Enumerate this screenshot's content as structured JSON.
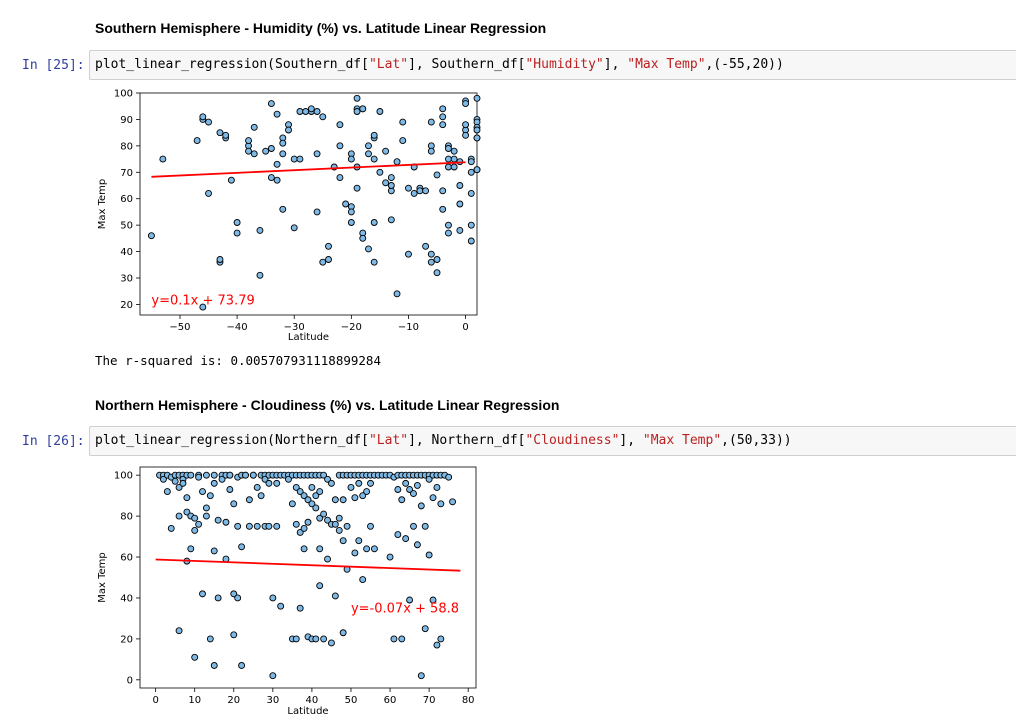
{
  "cells": [
    {
      "heading": "Southern Hemisphere - Humidity (%) vs. Latitude Linear Regression",
      "prompt": "In [25]:",
      "code_parts": [
        {
          "text": "plot_linear_regression(Southern_df[",
          "cls": ""
        },
        {
          "text": "\"Lat\"",
          "cls": "str"
        },
        {
          "text": "], Southern_df[",
          "cls": ""
        },
        {
          "text": "\"Humidity\"",
          "cls": "str"
        },
        {
          "text": "], ",
          "cls": ""
        },
        {
          "text": "\"Max Temp\"",
          "cls": "str"
        },
        {
          "text": ",(-55,20))",
          "cls": ""
        }
      ],
      "output_text": "The r-squared is: 0.005707931118899284"
    },
    {
      "heading": "Northern Hemisphere - Cloudiness (%) vs. Latitude Linear Regression",
      "prompt": "In [26]:",
      "code_parts": [
        {
          "text": "plot_linear_regression(Northern_df[",
          "cls": ""
        },
        {
          "text": "\"Lat\"",
          "cls": "str"
        },
        {
          "text": "], Northern_df[",
          "cls": ""
        },
        {
          "text": "\"Cloudiness\"",
          "cls": "str"
        },
        {
          "text": "], ",
          "cls": ""
        },
        {
          "text": "\"Max Temp\"",
          "cls": "str"
        },
        {
          "text": ",(50,33))",
          "cls": ""
        }
      ]
    }
  ],
  "chart_data": [
    {
      "type": "scatter",
      "xlabel": "Latitude",
      "ylabel": "Max Temp",
      "xlim": [
        -57,
        2
      ],
      "ylim": [
        16,
        100
      ],
      "xticks": [
        -50,
        -40,
        -30,
        -20,
        -10,
        0
      ],
      "yticks": [
        20,
        30,
        40,
        50,
        60,
        70,
        80,
        90,
        100
      ],
      "point_color": "#7fb9e6",
      "edge_color": "#000000",
      "line_color": "#ff0000",
      "regression": {
        "slope": 0.1,
        "intercept": 73.79,
        "x_range": [
          -55,
          0
        ]
      },
      "equation_label": {
        "text": "y=0.1x + 73.79",
        "x": -55,
        "y": 20
      },
      "points": [
        [
          -55,
          46
        ],
        [
          -53,
          75
        ],
        [
          -47,
          82
        ],
        [
          -46,
          90
        ],
        [
          -46,
          91
        ],
        [
          -45,
          89
        ],
        [
          -45,
          62
        ],
        [
          -46,
          19
        ],
        [
          -43,
          36
        ],
        [
          -43,
          37
        ],
        [
          -43,
          85
        ],
        [
          -42,
          83
        ],
        [
          -42,
          84
        ],
        [
          -41,
          67
        ],
        [
          -40,
          51
        ],
        [
          -40,
          47
        ],
        [
          -38,
          80
        ],
        [
          -38,
          78
        ],
        [
          -38,
          82
        ],
        [
          -37,
          77
        ],
        [
          -37,
          87
        ],
        [
          -36,
          48
        ],
        [
          -36,
          31
        ],
        [
          -35,
          78
        ],
        [
          -34,
          68
        ],
        [
          -34,
          79
        ],
        [
          -34,
          96
        ],
        [
          -33,
          92
        ],
        [
          -33,
          73
        ],
        [
          -33,
          67
        ],
        [
          -32,
          77
        ],
        [
          -32,
          83
        ],
        [
          -32,
          56
        ],
        [
          -32,
          81
        ],
        [
          -31,
          88
        ],
        [
          -31,
          86
        ],
        [
          -30,
          75
        ],
        [
          -30,
          49
        ],
        [
          -29,
          93
        ],
        [
          -29,
          75
        ],
        [
          -28,
          93
        ],
        [
          -27,
          93
        ],
        [
          -27,
          94
        ],
        [
          -26,
          77
        ],
        [
          -26,
          93
        ],
        [
          -26,
          55
        ],
        [
          -25,
          91
        ],
        [
          -25,
          36
        ],
        [
          -24,
          42
        ],
        [
          -24,
          37
        ],
        [
          -23,
          72
        ],
        [
          -22,
          88
        ],
        [
          -22,
          68
        ],
        [
          -22,
          80
        ],
        [
          -21,
          58
        ],
        [
          -20,
          57
        ],
        [
          -20,
          55
        ],
        [
          -20,
          51
        ],
        [
          -20,
          77
        ],
        [
          -20,
          75
        ],
        [
          -19,
          98
        ],
        [
          -19,
          94
        ],
        [
          -19,
          72
        ],
        [
          -19,
          64
        ],
        [
          -19,
          93
        ],
        [
          -18,
          94
        ],
        [
          -18,
          94
        ],
        [
          -18,
          47
        ],
        [
          -18,
          45
        ],
        [
          -17,
          41
        ],
        [
          -17,
          77
        ],
        [
          -17,
          80
        ],
        [
          -16,
          51
        ],
        [
          -16,
          83
        ],
        [
          -16,
          84
        ],
        [
          -16,
          75
        ],
        [
          -16,
          36
        ],
        [
          -15,
          93
        ],
        [
          -15,
          70
        ],
        [
          -14,
          78
        ],
        [
          -14,
          66
        ],
        [
          -13,
          63
        ],
        [
          -13,
          65
        ],
        [
          -13,
          52
        ],
        [
          -13,
          68
        ],
        [
          -12,
          74
        ],
        [
          -12,
          24
        ],
        [
          -11,
          89
        ],
        [
          -11,
          82
        ],
        [
          -10,
          64
        ],
        [
          -10,
          39
        ],
        [
          -9,
          62
        ],
        [
          -9,
          72
        ],
        [
          -8,
          64
        ],
        [
          -8,
          63
        ],
        [
          -7,
          42
        ],
        [
          -7,
          63
        ],
        [
          -6,
          80
        ],
        [
          -6,
          78
        ],
        [
          -6,
          89
        ],
        [
          -6,
          39
        ],
        [
          -6,
          36
        ],
        [
          -5,
          37
        ],
        [
          -5,
          32
        ],
        [
          -5,
          69
        ],
        [
          -4,
          63
        ],
        [
          -4,
          56
        ],
        [
          -4,
          94
        ],
        [
          -4,
          91
        ],
        [
          -4,
          88
        ],
        [
          -3,
          80
        ],
        [
          -3,
          79
        ],
        [
          -3,
          75
        ],
        [
          -3,
          72
        ],
        [
          -3,
          50
        ],
        [
          -3,
          47
        ],
        [
          -2,
          78
        ],
        [
          -2,
          75
        ],
        [
          -2,
          72
        ],
        [
          -1,
          65
        ],
        [
          -1,
          58
        ],
        [
          -1,
          48
        ],
        [
          -1,
          74
        ],
        [
          0,
          97
        ],
        [
          0,
          96
        ],
        [
          0,
          86
        ],
        [
          0,
          84
        ],
        [
          0,
          88
        ],
        [
          1,
          75
        ],
        [
          1,
          74
        ],
        [
          1,
          44
        ],
        [
          1,
          50
        ],
        [
          1,
          70
        ],
        [
          1,
          62
        ],
        [
          2,
          90
        ],
        [
          2,
          89
        ],
        [
          2,
          87
        ],
        [
          2,
          83
        ],
        [
          2,
          83
        ],
        [
          2,
          98
        ],
        [
          2,
          71
        ],
        [
          2,
          71
        ],
        [
          2,
          86
        ]
      ]
    },
    {
      "type": "scatter",
      "xlabel": "Latitude",
      "ylabel": "Max Temp",
      "xlim": [
        -4,
        82
      ],
      "ylim": [
        -4,
        104
      ],
      "xticks": [
        0,
        10,
        20,
        30,
        40,
        50,
        60,
        70,
        80
      ],
      "yticks": [
        0,
        20,
        40,
        60,
        80,
        100
      ],
      "point_color": "#7fb9e6",
      "edge_color": "#000000",
      "line_color": "#ff0000",
      "regression": {
        "slope": -0.07,
        "intercept": 58.8,
        "x_range": [
          0,
          78
        ]
      },
      "equation_label": {
        "text": "y=-0.07x + 58.8",
        "x": 50,
        "y": 33
      },
      "points": [
        [
          1,
          100
        ],
        [
          2,
          100
        ],
        [
          2,
          98
        ],
        [
          3,
          92
        ],
        [
          3,
          100
        ],
        [
          4,
          74
        ],
        [
          4,
          99
        ],
        [
          5,
          100
        ],
        [
          5,
          97
        ],
        [
          6,
          100
        ],
        [
          6,
          94
        ],
        [
          6,
          24
        ],
        [
          6,
          80
        ],
        [
          7,
          100
        ],
        [
          7,
          98
        ],
        [
          7,
          96
        ],
        [
          8,
          100
        ],
        [
          8,
          89
        ],
        [
          8,
          82
        ],
        [
          8,
          58
        ],
        [
          9,
          100
        ],
        [
          9,
          80
        ],
        [
          9,
          64
        ],
        [
          10,
          79
        ],
        [
          10,
          73
        ],
        [
          10,
          11
        ],
        [
          11,
          100
        ],
        [
          11,
          99
        ],
        [
          11,
          76
        ],
        [
          12,
          92
        ],
        [
          12,
          42
        ],
        [
          13,
          100
        ],
        [
          13,
          84
        ],
        [
          13,
          80
        ],
        [
          14,
          90
        ],
        [
          14,
          20
        ],
        [
          15,
          100
        ],
        [
          15,
          96
        ],
        [
          15,
          63
        ],
        [
          15,
          7
        ],
        [
          16,
          78
        ],
        [
          16,
          40
        ],
        [
          17,
          100
        ],
        [
          17,
          98
        ],
        [
          18,
          100
        ],
        [
          18,
          77
        ],
        [
          18,
          59
        ],
        [
          19,
          100
        ],
        [
          19,
          100
        ],
        [
          19,
          93
        ],
        [
          20,
          86
        ],
        [
          20,
          42
        ],
        [
          20,
          22
        ],
        [
          21,
          99
        ],
        [
          21,
          75
        ],
        [
          21,
          40
        ],
        [
          22,
          100
        ],
        [
          22,
          65
        ],
        [
          22,
          7
        ],
        [
          23,
          100
        ],
        [
          23,
          100
        ],
        [
          24,
          88
        ],
        [
          24,
          75
        ],
        [
          25,
          100
        ],
        [
          25,
          100
        ],
        [
          26,
          94
        ],
        [
          26,
          75
        ],
        [
          27,
          100
        ],
        [
          27,
          90
        ],
        [
          28,
          100
        ],
        [
          28,
          98
        ],
        [
          28,
          75
        ],
        [
          29,
          100
        ],
        [
          29,
          96
        ],
        [
          29,
          75
        ],
        [
          30,
          100
        ],
        [
          30,
          40
        ],
        [
          30,
          2
        ],
        [
          31,
          100
        ],
        [
          31,
          96
        ],
        [
          31,
          75
        ],
        [
          32,
          100
        ],
        [
          32,
          36
        ],
        [
          33,
          100
        ],
        [
          34,
          100
        ],
        [
          34,
          98
        ],
        [
          35,
          100
        ],
        [
          35,
          86
        ],
        [
          35,
          20
        ],
        [
          36,
          100
        ],
        [
          36,
          94
        ],
        [
          36,
          76
        ],
        [
          36,
          20
        ],
        [
          37,
          100
        ],
        [
          37,
          92
        ],
        [
          37,
          72
        ],
        [
          37,
          35
        ],
        [
          38,
          100
        ],
        [
          38,
          90
        ],
        [
          38,
          74
        ],
        [
          38,
          64
        ],
        [
          39,
          100
        ],
        [
          39,
          88
        ],
        [
          39,
          77
        ],
        [
          39,
          21
        ],
        [
          40,
          100
        ],
        [
          40,
          94
        ],
        [
          40,
          86
        ],
        [
          40,
          20
        ],
        [
          41,
          100
        ],
        [
          41,
          90
        ],
        [
          41,
          84
        ],
        [
          41,
          20
        ],
        [
          42,
          100
        ],
        [
          42,
          92
        ],
        [
          42,
          79
        ],
        [
          42,
          64
        ],
        [
          42,
          46
        ],
        [
          43,
          100
        ],
        [
          43,
          81
        ],
        [
          43,
          20
        ],
        [
          44,
          98
        ],
        [
          44,
          78
        ],
        [
          44,
          59
        ],
        [
          45,
          96
        ],
        [
          45,
          76
        ],
        [
          45,
          18
        ],
        [
          46,
          88
        ],
        [
          46,
          76
        ],
        [
          46,
          41
        ],
        [
          47,
          100
        ],
        [
          47,
          79
        ],
        [
          47,
          73
        ],
        [
          48,
          100
        ],
        [
          48,
          88
        ],
        [
          48,
          68
        ],
        [
          48,
          23
        ],
        [
          49,
          100
        ],
        [
          49,
          75
        ],
        [
          49,
          54
        ],
        [
          50,
          100
        ],
        [
          50,
          94
        ],
        [
          51,
          100
        ],
        [
          51,
          89
        ],
        [
          51,
          62
        ],
        [
          52,
          100
        ],
        [
          52,
          96
        ],
        [
          52,
          68
        ],
        [
          53,
          100
        ],
        [
          53,
          90
        ],
        [
          53,
          49
        ],
        [
          54,
          100
        ],
        [
          54,
          92
        ],
        [
          54,
          64
        ],
        [
          55,
          100
        ],
        [
          55,
          96
        ],
        [
          55,
          75
        ],
        [
          56,
          100
        ],
        [
          56,
          64
        ],
        [
          57,
          100
        ],
        [
          58,
          100
        ],
        [
          59,
          100
        ],
        [
          60,
          100
        ],
        [
          60,
          60
        ],
        [
          61,
          99
        ],
        [
          61,
          20
        ],
        [
          62,
          100
        ],
        [
          62,
          93
        ],
        [
          62,
          71
        ],
        [
          63,
          100
        ],
        [
          63,
          88
        ],
        [
          63,
          20
        ],
        [
          64,
          100
        ],
        [
          64,
          96
        ],
        [
          64,
          69
        ],
        [
          65,
          100
        ],
        [
          65,
          93
        ],
        [
          65,
          39
        ],
        [
          66,
          100
        ],
        [
          66,
          91
        ],
        [
          66,
          75
        ],
        [
          67,
          100
        ],
        [
          67,
          95
        ],
        [
          67,
          66
        ],
        [
          68,
          100
        ],
        [
          68,
          85
        ],
        [
          68,
          2
        ],
        [
          69,
          100
        ],
        [
          69,
          75
        ],
        [
          69,
          25
        ],
        [
          70,
          100
        ],
        [
          70,
          98
        ],
        [
          70,
          61
        ],
        [
          71,
          100
        ],
        [
          71,
          89
        ],
        [
          71,
          39
        ],
        [
          72,
          100
        ],
        [
          72,
          94
        ],
        [
          72,
          17
        ],
        [
          73,
          100
        ],
        [
          73,
          86
        ],
        [
          73,
          20
        ],
        [
          74,
          100
        ],
        [
          75,
          99
        ],
        [
          76,
          87
        ]
      ]
    }
  ]
}
